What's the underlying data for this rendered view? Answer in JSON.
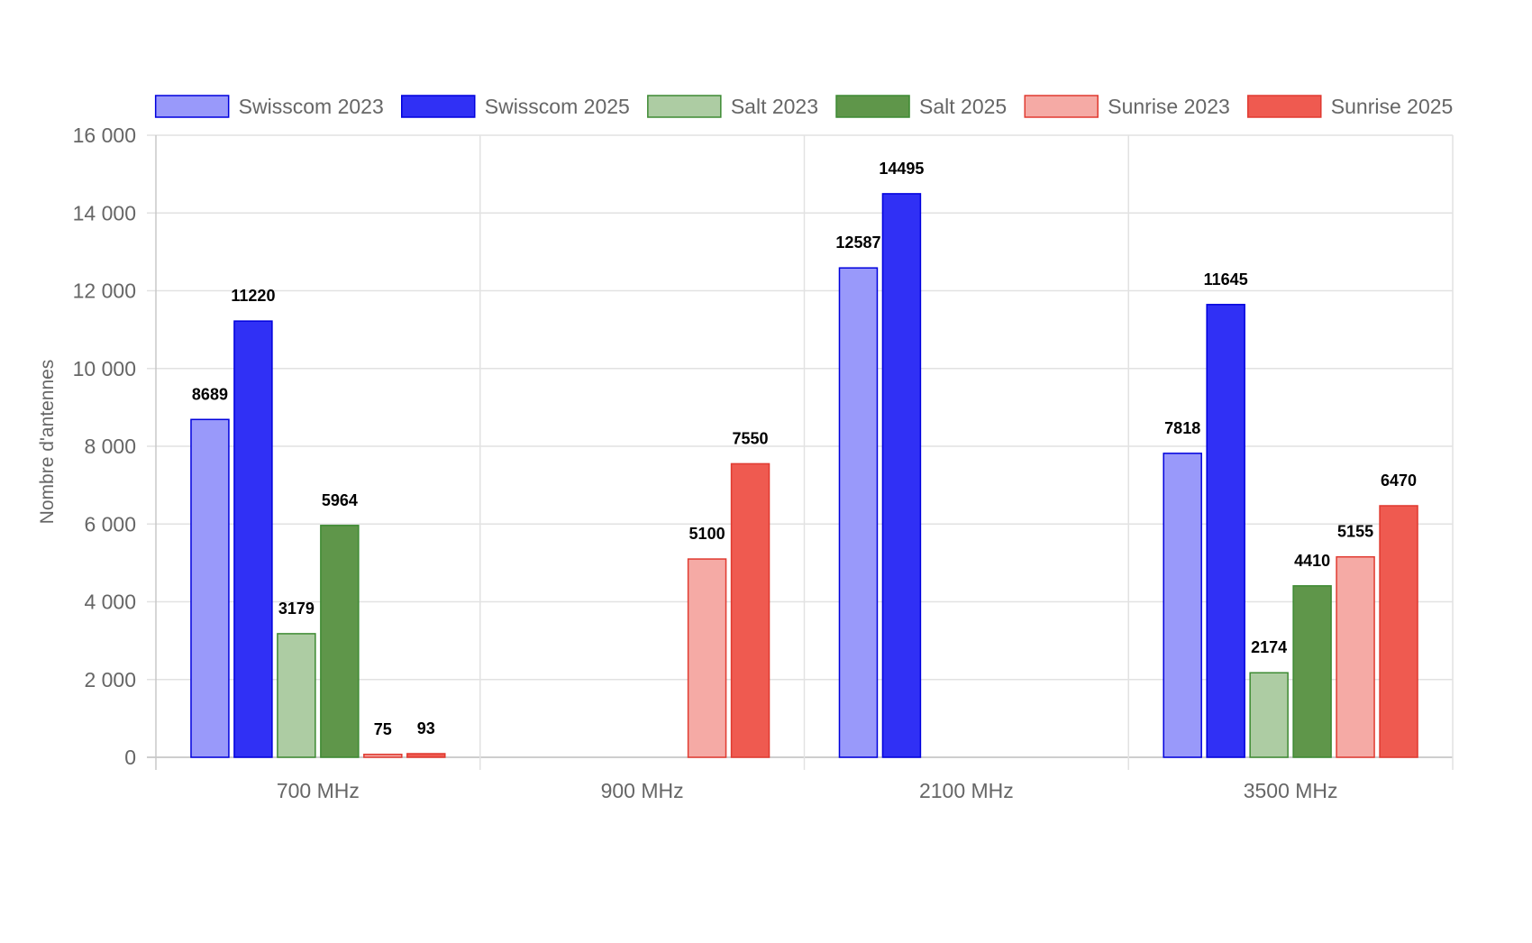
{
  "chart_data": {
    "type": "bar",
    "title": "",
    "xlabel": "",
    "ylabel": "Nombre d'antennes",
    "ylim": [
      0,
      16000
    ],
    "yticks": [
      0,
      2000,
      4000,
      6000,
      8000,
      10000,
      12000,
      14000,
      16000
    ],
    "ytick_labels": [
      "0",
      "2 000",
      "4 000",
      "6 000",
      "8 000",
      "10 000",
      "12 000",
      "14 000",
      "16 000"
    ],
    "grid": true,
    "legend_position": "top",
    "categories": [
      "700 MHz",
      "900 MHz",
      "2100 MHz",
      "3500 MHz"
    ],
    "series": [
      {
        "name": "Swisscom 2023",
        "values": [
          8689,
          null,
          12587,
          7818
        ],
        "fill": "#9999fa",
        "stroke": "#0000dd"
      },
      {
        "name": "Swisscom 2025",
        "values": [
          11220,
          null,
          14495,
          11645
        ],
        "fill": "#3030f5",
        "stroke": "#0000dd"
      },
      {
        "name": "Salt 2023",
        "values": [
          3179,
          null,
          null,
          2174
        ],
        "fill": "#adcca3",
        "stroke": "#3d8a32"
      },
      {
        "name": "Salt 2025",
        "values": [
          5964,
          null,
          null,
          4410
        ],
        "fill": "#5f964a",
        "stroke": "#3d8a32"
      },
      {
        "name": "Sunrise 2023",
        "values": [
          75,
          5100,
          null,
          5155
        ],
        "fill": "#f5aaa5",
        "stroke": "#e03a30"
      },
      {
        "name": "Sunrise 2025",
        "values": [
          93,
          7550,
          null,
          6470
        ],
        "fill": "#ef5a50",
        "stroke": "#e03a30"
      }
    ]
  }
}
